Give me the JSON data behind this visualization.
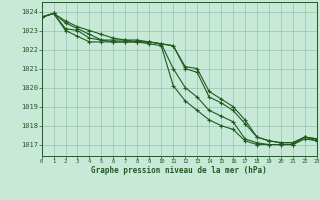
{
  "title": "Graphe pression niveau de la mer (hPa)",
  "background_color": "#c8e8d8",
  "grid_color_minor": "#b0d8c8",
  "grid_color_major": "#90c8b0",
  "line_color": "#1e5c1e",
  "xlim": [
    0,
    23
  ],
  "ylim": [
    1016.4,
    1024.5
  ],
  "yticks": [
    1017,
    1018,
    1019,
    1020,
    1021,
    1022,
    1023,
    1024
  ],
  "xticks": [
    0,
    1,
    2,
    3,
    4,
    5,
    6,
    7,
    8,
    9,
    10,
    11,
    12,
    13,
    14,
    15,
    16,
    17,
    18,
    19,
    20,
    21,
    22,
    23
  ],
  "series": [
    [
      1023.7,
      1023.9,
      1023.5,
      1023.2,
      1023.0,
      1022.8,
      1022.6,
      1022.5,
      1022.4,
      1022.4,
      1022.3,
      1022.2,
      1021.0,
      1020.8,
      1019.5,
      1019.2,
      1018.8,
      1018.1,
      1017.4,
      1017.2,
      1017.1,
      1017.1,
      1017.4,
      1017.3
    ],
    [
      1023.7,
      1023.9,
      1023.4,
      1023.1,
      1022.8,
      1022.5,
      1022.4,
      1022.4,
      1022.4,
      1022.4,
      1022.3,
      1022.2,
      1021.1,
      1021.0,
      1019.8,
      1019.4,
      1019.0,
      1018.3,
      1017.4,
      1017.2,
      1017.1,
      1017.1,
      1017.4,
      1017.3
    ],
    [
      1023.7,
      1023.9,
      1023.1,
      1023.0,
      1022.6,
      1022.5,
      1022.5,
      1022.5,
      1022.5,
      1022.4,
      1022.3,
      1021.0,
      1020.0,
      1019.5,
      1018.8,
      1018.5,
      1018.2,
      1017.3,
      1017.1,
      1017.0,
      1017.0,
      1017.0,
      1017.3,
      1017.2
    ],
    [
      1023.7,
      1023.9,
      1023.0,
      1022.7,
      1022.4,
      1022.4,
      1022.4,
      1022.4,
      1022.4,
      1022.3,
      1022.2,
      1020.1,
      1019.3,
      1018.8,
      1018.3,
      1018.0,
      1017.8,
      1017.2,
      1017.0,
      1017.0,
      1017.0,
      1017.0,
      1017.4,
      1017.2
    ]
  ]
}
